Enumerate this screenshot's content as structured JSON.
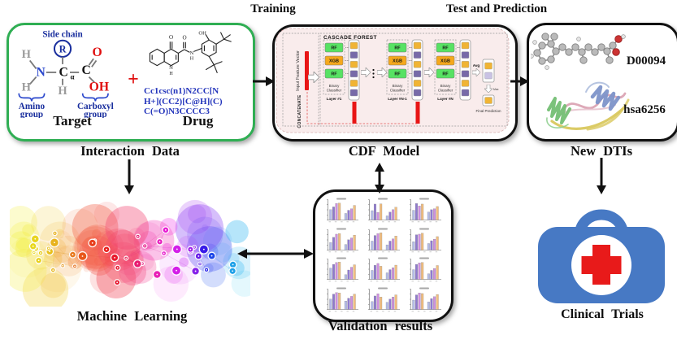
{
  "page": {
    "training_label": "Training",
    "test_prediction_label": "Test and Prediction",
    "interaction_data_label": "Interaction Data",
    "cdf_model_label": "CDF Model",
    "new_dtis_label": "New DTIs",
    "machine_learning_label": "Machine Learning",
    "validation_results_label": "Validation results",
    "clinical_trials_label": "Clinical Trials"
  },
  "plus_sign": "+",
  "target_panel": {
    "title": "Target",
    "side_chain_label": "Side chain",
    "r_symbol": "R",
    "h_symbol": "H",
    "n_symbol": "N",
    "c_symbol": "C",
    "alpha_symbol": "α",
    "o_symbol": "O",
    "oh_symbol": "OH",
    "amino_group_line1": "Amino",
    "amino_group_line2": "group",
    "carboxyl_group_line1": "Carboxyl",
    "carboxyl_group_line2": "group"
  },
  "drug_panel": {
    "title": "Drug",
    "smiles_line1": "Cc1csc(n1)N2CC[N",
    "smiles_line2": "H+](CC2)[C@H](C)",
    "smiles_line3": "C(=O)N3CCCC3",
    "atom_oh": "OH",
    "atom_o_ring": "O",
    "atom_o_amide": "O",
    "atom_n_ring": "N",
    "atom_h_ring": "H",
    "atom_n_amide": "N",
    "atom_h_amide": "H"
  },
  "cascade_forest": {
    "panel_title": "CASCADE FOREST",
    "input_vector_label": "Input Feature Vector",
    "concatenate_label": "CONCATENATE",
    "layers": [
      {
        "chips": [
          "RF",
          "XGB",
          "RF"
        ],
        "caption_line1": "Binary",
        "caption_line2": "Classifier",
        "layer_label": "Layer #1"
      },
      {
        "chips": [
          "RF",
          "XGB",
          "RF"
        ],
        "caption_line1": "Binary",
        "caption_line2": "Classifier",
        "layer_label": "Layer #N-1"
      },
      {
        "chips": [
          "RF",
          "XGB",
          "RF"
        ],
        "caption_line1": "Binary",
        "caption_line2": "Classifier",
        "layer_label": "Layer #N"
      }
    ],
    "avg_label": "Avg",
    "max_label": "Max",
    "final_prediction_label": "Final Prediction"
  },
  "new_dtis_panel": {
    "drug_id": "D00094",
    "target_id": "hsa6256"
  },
  "colors": {
    "green_border": "#2fae53",
    "black_border": "#111111",
    "cascade_bg": "#f9ecec",
    "rf_chip": "#57e263",
    "xgb_chip": "#f5a81c",
    "stack_orange": "#f0b434",
    "stack_purple": "#776aa8",
    "red_bar": "#e81515",
    "accent_red": "#e01010",
    "structure_blue": "#1a2f9e",
    "smiles_blue": "#2233bb",
    "first_aid_blue": "#4779c4",
    "cross_red": "#e81a1a"
  },
  "chart_data": {
    "type": "bar",
    "layout": "4x3 grid of mini grouped bar charts, 2 groups of 4 bars each",
    "grid_rows": 4,
    "grid_cols": 3,
    "legend_position": "none",
    "ylim": [
      0,
      1
    ],
    "series_colors": [
      "#b4bce8",
      "#8f7ad0",
      "#cf8fe0",
      "#f2bd7e"
    ],
    "charts": [
      {
        "groups": [
          [
            0.55,
            0.7,
            0.88,
            0.9
          ],
          [
            0.35,
            0.52,
            0.6,
            0.78
          ]
        ]
      },
      {
        "groups": [
          [
            0.5,
            0.85,
            0.4,
            0.86
          ],
          [
            0.22,
            0.42,
            0.55,
            0.68
          ]
        ]
      },
      {
        "groups": [
          [
            0.52,
            0.88,
            0.75,
            0.85
          ],
          [
            0.42,
            0.55,
            0.6,
            0.72
          ]
        ]
      },
      {
        "groups": [
          [
            0.4,
            0.68,
            0.85,
            0.88
          ],
          [
            0.3,
            0.55,
            0.65,
            0.8
          ]
        ]
      },
      {
        "groups": [
          [
            0.48,
            0.78,
            0.88,
            0.92
          ],
          [
            0.28,
            0.48,
            0.6,
            0.75
          ]
        ]
      },
      {
        "groups": [
          [
            0.45,
            0.82,
            0.85,
            0.9
          ],
          [
            0.35,
            0.5,
            0.58,
            0.72
          ]
        ]
      },
      {
        "groups": [
          [
            0.6,
            0.8,
            0.9,
            0.92
          ],
          [
            0.25,
            0.5,
            0.65,
            0.78
          ]
        ]
      },
      {
        "groups": [
          [
            0.48,
            0.75,
            0.85,
            0.7
          ],
          [
            0.35,
            0.52,
            0.62,
            0.76
          ]
        ]
      },
      {
        "groups": [
          [
            0.52,
            0.8,
            0.88,
            0.9
          ],
          [
            0.3,
            0.48,
            0.58,
            0.74
          ]
        ]
      },
      {
        "groups": [
          [
            0.55,
            0.82,
            0.9,
            0.88
          ],
          [
            0.45,
            0.6,
            0.7,
            0.82
          ]
        ]
      },
      {
        "groups": [
          [
            0.42,
            0.72,
            0.84,
            0.66
          ],
          [
            0.38,
            0.55,
            0.66,
            0.78
          ]
        ]
      },
      {
        "groups": [
          [
            0.5,
            0.78,
            0.88,
            0.85
          ],
          [
            0.4,
            0.58,
            0.68,
            0.8
          ]
        ]
      }
    ]
  }
}
